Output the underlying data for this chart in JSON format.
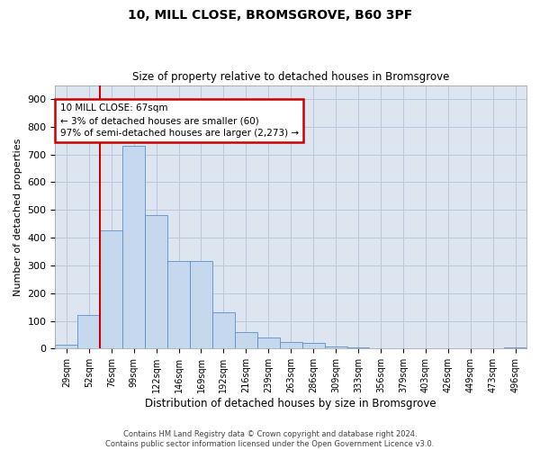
{
  "title": "10, MILL CLOSE, BROMSGROVE, B60 3PF",
  "subtitle": "Size of property relative to detached houses in Bromsgrove",
  "xlabel": "Distribution of detached houses by size in Bromsgrove",
  "ylabel": "Number of detached properties",
  "footer_line1": "Contains HM Land Registry data © Crown copyright and database right 2024.",
  "footer_line2": "Contains public sector information licensed under the Open Government Licence v3.0.",
  "bin_labels": [
    "29sqm",
    "52sqm",
    "76sqm",
    "99sqm",
    "122sqm",
    "146sqm",
    "169sqm",
    "192sqm",
    "216sqm",
    "239sqm",
    "263sqm",
    "286sqm",
    "309sqm",
    "333sqm",
    "356sqm",
    "379sqm",
    "403sqm",
    "426sqm",
    "449sqm",
    "473sqm",
    "496sqm"
  ],
  "bar_values": [
    15,
    120,
    425,
    730,
    480,
    315,
    315,
    130,
    60,
    40,
    25,
    20,
    8,
    5,
    0,
    0,
    0,
    0,
    0,
    0,
    5
  ],
  "bar_color": "#c5d8ee",
  "bar_edge_color": "#5b8fc9",
  "property_label": "10 MILL CLOSE: 67sqm",
  "annotation_line1": "← 3% of detached houses are smaller (60)",
  "annotation_line2": "97% of semi-detached houses are larger (2,273) →",
  "vline_color": "#cc0000",
  "vline_x": 1.5,
  "ylim": [
    0,
    950
  ],
  "yticks": [
    0,
    100,
    200,
    300,
    400,
    500,
    600,
    700,
    800,
    900
  ],
  "bg_axes": "#dde6f0",
  "grid_color": "#b8c8dc",
  "annotation_box_facecolor": "#ffffff",
  "annotation_box_edgecolor": "#cc0000"
}
